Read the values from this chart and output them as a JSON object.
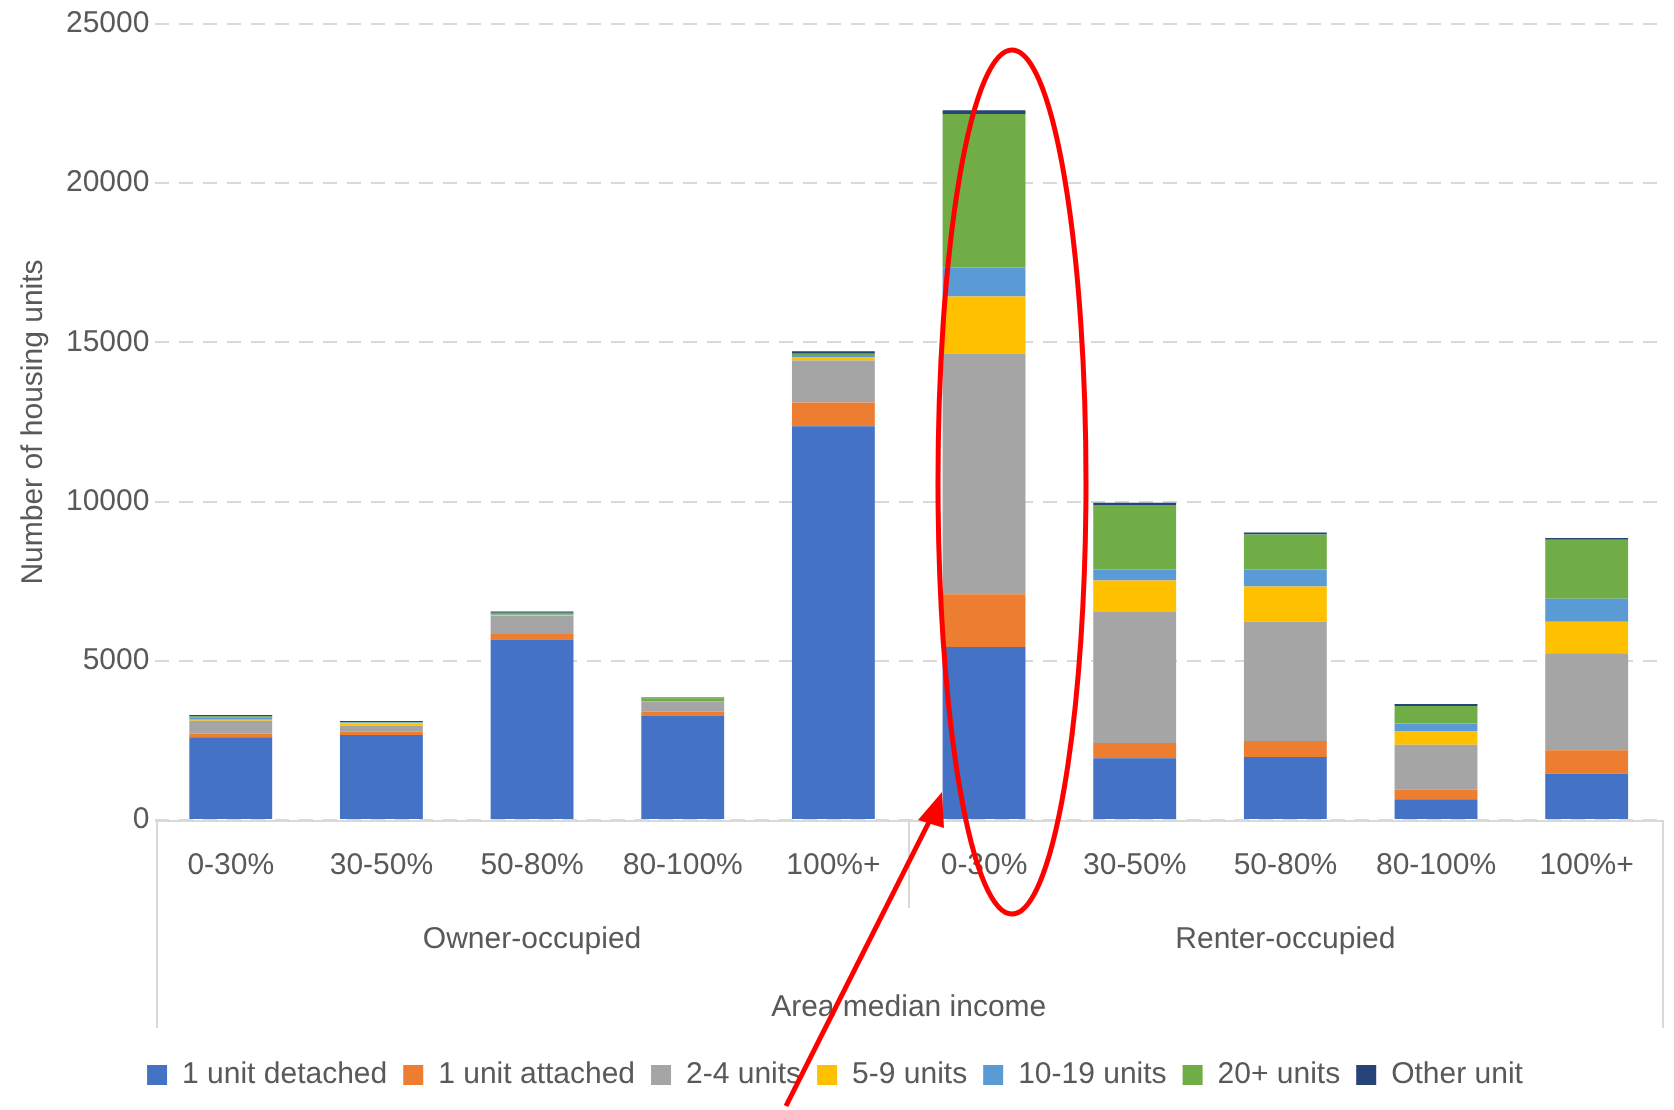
{
  "chart_data": {
    "type": "bar",
    "stacked": true,
    "ylabel": "Number of housing units",
    "xlabel": "Area median income",
    "categories": [
      "0-30%",
      "30-50%",
      "50-80%",
      "80-100%",
      "100%+",
      "0-30%",
      "30-50%",
      "50-80%",
      "80-100%",
      "100%+"
    ],
    "annotations": [
      "Owner-occupied",
      "Renter-occupied"
    ],
    "series": [
      {
        "name": "1 unit detached",
        "color": "#4472c4",
        "values": [
          2600,
          2670,
          5670,
          3280,
          12370,
          5430,
          1940,
          1980,
          650,
          1450
        ]
      },
      {
        "name": "1 unit attached",
        "color": "#ed7d31",
        "values": [
          120,
          100,
          170,
          120,
          740,
          1660,
          480,
          500,
          300,
          740
        ]
      },
      {
        "name": "2-4 units",
        "color": "#a5a5a5",
        "values": [
          400,
          190,
          570,
          320,
          1320,
          7560,
          4110,
          3750,
          1410,
          3050
        ]
      },
      {
        "name": "5-9 units",
        "color": "#ffc000",
        "values": [
          30,
          80,
          20,
          null,
          110,
          1790,
          990,
          1100,
          420,
          990
        ]
      },
      {
        "name": "10-19 units",
        "color": "#5b9bd5",
        "values": [
          60,
          20,
          20,
          20,
          30,
          910,
          350,
          540,
          250,
          720
        ]
      },
      {
        "name": "20+ units",
        "color": "#70ad47",
        "values": [
          40,
          20,
          60,
          80,
          70,
          4820,
          2020,
          1100,
          550,
          1850
        ]
      },
      {
        "name": "Other unit",
        "color": "#264478",
        "values": [
          50,
          30,
          40,
          30,
          80,
          120,
          70,
          60,
          60,
          60
        ]
      }
    ],
    "ylim": [
      0,
      25000
    ],
    "yticks": [
      0,
      5000,
      10000,
      15000,
      20000,
      25000
    ],
    "grid": "y",
    "legend": "bottom"
  }
}
